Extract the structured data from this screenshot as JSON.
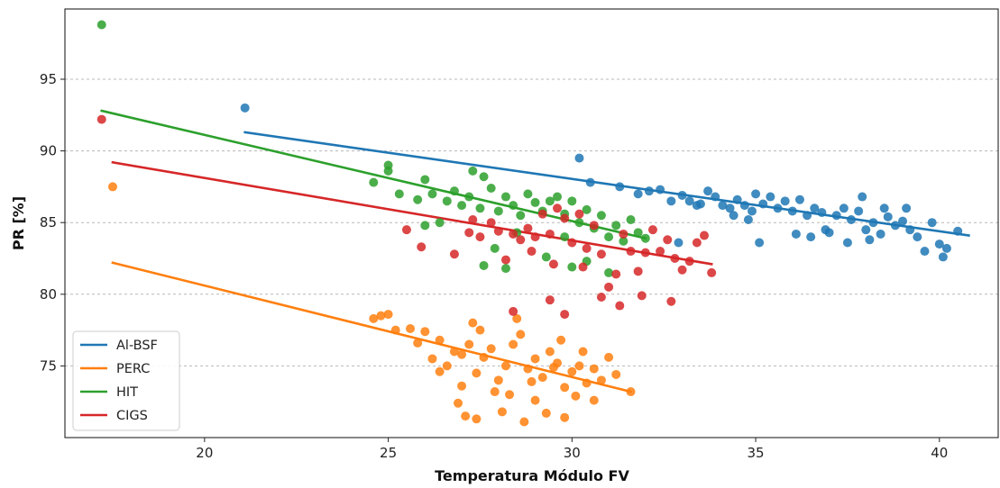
{
  "chart_data": {
    "type": "scatter",
    "title": "",
    "xlabel": "Temperatura Módulo FV",
    "ylabel": "PR [%]",
    "xlim": [
      16.2,
      41.6
    ],
    "ylim": [
      70.0,
      99.9
    ],
    "xticks": [
      20,
      25,
      30,
      35,
      40
    ],
    "yticks": [
      75,
      80,
      85,
      90,
      95
    ],
    "grid": "horizontal dashed",
    "legend_position": "bottom-left",
    "series": [
      {
        "name": "Al-BSF",
        "color": "#1f77b4",
        "fit": [
          [
            21.1,
            91.3
          ],
          [
            40.8,
            84.1
          ]
        ],
        "points": [
          [
            21.1,
            93.0
          ],
          [
            30.2,
            89.5
          ],
          [
            30.5,
            87.8
          ],
          [
            31.3,
            87.5
          ],
          [
            31.8,
            87.0
          ],
          [
            32.1,
            87.2
          ],
          [
            32.4,
            87.3
          ],
          [
            32.7,
            86.5
          ],
          [
            33.0,
            86.9
          ],
          [
            33.2,
            86.5
          ],
          [
            33.5,
            86.3
          ],
          [
            33.7,
            87.2
          ],
          [
            33.9,
            86.8
          ],
          [
            34.1,
            86.2
          ],
          [
            34.3,
            86.0
          ],
          [
            34.5,
            86.6
          ],
          [
            34.7,
            86.2
          ],
          [
            34.9,
            85.8
          ],
          [
            35.0,
            87.0
          ],
          [
            35.2,
            86.3
          ],
          [
            35.4,
            86.8
          ],
          [
            35.6,
            86.0
          ],
          [
            35.8,
            86.5
          ],
          [
            36.0,
            85.8
          ],
          [
            36.2,
            86.6
          ],
          [
            36.4,
            85.5
          ],
          [
            36.6,
            86.0
          ],
          [
            36.8,
            85.7
          ],
          [
            37.0,
            84.3
          ],
          [
            37.2,
            85.5
          ],
          [
            37.4,
            86.0
          ],
          [
            37.6,
            85.2
          ],
          [
            37.8,
            85.8
          ],
          [
            38.0,
            84.5
          ],
          [
            38.2,
            85.0
          ],
          [
            38.4,
            84.2
          ],
          [
            38.6,
            85.4
          ],
          [
            38.8,
            84.8
          ],
          [
            39.0,
            85.1
          ],
          [
            39.2,
            84.5
          ],
          [
            39.4,
            84.0
          ],
          [
            39.6,
            83.0
          ],
          [
            39.8,
            85.0
          ],
          [
            40.0,
            83.5
          ],
          [
            40.2,
            83.2
          ],
          [
            40.5,
            84.4
          ],
          [
            36.5,
            84.0
          ],
          [
            37.5,
            83.6
          ],
          [
            38.1,
            83.8
          ],
          [
            35.1,
            83.6
          ],
          [
            32.9,
            83.6
          ],
          [
            36.1,
            84.2
          ],
          [
            34.8,
            85.2
          ],
          [
            37.9,
            86.8
          ],
          [
            38.5,
            86.0
          ],
          [
            39.1,
            86.0
          ],
          [
            40.1,
            82.6
          ],
          [
            36.9,
            84.5
          ],
          [
            33.4,
            86.2
          ],
          [
            34.4,
            85.5
          ]
        ]
      },
      {
        "name": "PERC",
        "color": "#ff7f0e",
        "fit": [
          [
            17.5,
            82.2
          ],
          [
            31.6,
            73.2
          ]
        ],
        "points": [
          [
            17.5,
            87.5
          ],
          [
            24.6,
            78.3
          ],
          [
            24.8,
            78.5
          ],
          [
            25.0,
            78.6
          ],
          [
            25.2,
            77.5
          ],
          [
            25.6,
            77.6
          ],
          [
            25.8,
            76.6
          ],
          [
            26.0,
            77.4
          ],
          [
            26.2,
            75.5
          ],
          [
            26.4,
            76.8
          ],
          [
            26.6,
            75.0
          ],
          [
            26.8,
            76.0
          ],
          [
            27.0,
            75.8
          ],
          [
            27.2,
            76.5
          ],
          [
            27.4,
            74.5
          ],
          [
            27.6,
            75.6
          ],
          [
            27.8,
            76.2
          ],
          [
            28.0,
            74.0
          ],
          [
            28.2,
            75.0
          ],
          [
            28.4,
            76.5
          ],
          [
            28.6,
            77.2
          ],
          [
            28.8,
            74.8
          ],
          [
            29.0,
            75.5
          ],
          [
            29.2,
            74.2
          ],
          [
            29.4,
            76.0
          ],
          [
            29.6,
            75.2
          ],
          [
            29.8,
            73.5
          ],
          [
            30.0,
            74.6
          ],
          [
            30.2,
            75.0
          ],
          [
            30.4,
            73.8
          ],
          [
            30.6,
            74.8
          ],
          [
            30.8,
            74.0
          ],
          [
            31.0,
            75.6
          ],
          [
            31.2,
            74.4
          ],
          [
            31.6,
            73.2
          ],
          [
            27.3,
            78.0
          ],
          [
            27.5,
            77.5
          ],
          [
            28.5,
            78.3
          ],
          [
            29.7,
            76.8
          ],
          [
            26.9,
            72.4
          ],
          [
            27.1,
            71.5
          ],
          [
            27.4,
            71.3
          ],
          [
            28.1,
            71.8
          ],
          [
            28.7,
            71.1
          ],
          [
            29.3,
            71.7
          ],
          [
            29.8,
            71.4
          ],
          [
            28.3,
            73.0
          ],
          [
            29.0,
            72.6
          ],
          [
            30.1,
            72.9
          ],
          [
            30.6,
            72.6
          ],
          [
            26.4,
            74.6
          ],
          [
            27.0,
            73.6
          ],
          [
            27.9,
            73.2
          ],
          [
            28.9,
            73.9
          ],
          [
            29.5,
            74.9
          ],
          [
            30.3,
            76.0
          ]
        ]
      },
      {
        "name": "HIT",
        "color": "#2ca02c",
        "fit": [
          [
            17.2,
            92.8
          ],
          [
            32.0,
            83.9
          ]
        ],
        "points": [
          [
            17.2,
            98.8
          ],
          [
            24.6,
            87.8
          ],
          [
            25.0,
            89.0
          ],
          [
            25.0,
            88.6
          ],
          [
            25.3,
            87.0
          ],
          [
            25.8,
            86.6
          ],
          [
            26.0,
            88.0
          ],
          [
            26.2,
            87.0
          ],
          [
            26.4,
            85.0
          ],
          [
            26.6,
            86.5
          ],
          [
            26.8,
            87.2
          ],
          [
            27.0,
            86.2
          ],
          [
            27.2,
            86.8
          ],
          [
            27.3,
            88.6
          ],
          [
            27.5,
            86.0
          ],
          [
            27.6,
            88.2
          ],
          [
            27.8,
            87.4
          ],
          [
            28.0,
            85.8
          ],
          [
            28.2,
            86.8
          ],
          [
            28.4,
            86.2
          ],
          [
            28.6,
            85.5
          ],
          [
            28.8,
            87.0
          ],
          [
            29.0,
            86.4
          ],
          [
            29.2,
            85.8
          ],
          [
            29.4,
            86.5
          ],
          [
            29.6,
            86.8
          ],
          [
            29.8,
            85.6
          ],
          [
            30.0,
            86.5
          ],
          [
            30.2,
            85.0
          ],
          [
            30.4,
            85.9
          ],
          [
            30.6,
            84.6
          ],
          [
            30.8,
            85.5
          ],
          [
            31.0,
            84.0
          ],
          [
            31.2,
            84.8
          ],
          [
            31.4,
            83.7
          ],
          [
            31.6,
            85.2
          ],
          [
            31.8,
            84.3
          ],
          [
            32.0,
            83.9
          ],
          [
            27.6,
            82.0
          ],
          [
            28.2,
            81.8
          ],
          [
            29.3,
            82.6
          ],
          [
            30.0,
            81.9
          ],
          [
            31.0,
            81.5
          ],
          [
            28.5,
            84.3
          ],
          [
            29.8,
            84.0
          ],
          [
            26.0,
            84.8
          ],
          [
            27.9,
            83.2
          ],
          [
            30.4,
            82.3
          ]
        ]
      },
      {
        "name": "CIGS",
        "color": "#d62728",
        "fit": [
          [
            17.5,
            89.2
          ],
          [
            33.8,
            82.1
          ]
        ],
        "points": [
          [
            17.2,
            92.2
          ],
          [
            25.5,
            84.5
          ],
          [
            25.9,
            83.3
          ],
          [
            26.8,
            82.8
          ],
          [
            27.2,
            84.3
          ],
          [
            27.5,
            84.0
          ],
          [
            27.8,
            85.0
          ],
          [
            28.0,
            84.4
          ],
          [
            28.2,
            82.4
          ],
          [
            28.4,
            84.2
          ],
          [
            28.6,
            83.8
          ],
          [
            28.8,
            84.6
          ],
          [
            29.0,
            84.0
          ],
          [
            29.2,
            85.6
          ],
          [
            29.4,
            84.2
          ],
          [
            29.6,
            86.0
          ],
          [
            29.8,
            85.3
          ],
          [
            30.0,
            83.6
          ],
          [
            30.2,
            85.6
          ],
          [
            30.4,
            83.2
          ],
          [
            30.6,
            84.8
          ],
          [
            30.8,
            82.8
          ],
          [
            31.0,
            80.5
          ],
          [
            31.2,
            81.4
          ],
          [
            31.4,
            84.2
          ],
          [
            31.6,
            83.0
          ],
          [
            31.8,
            81.6
          ],
          [
            32.0,
            82.9
          ],
          [
            32.2,
            84.5
          ],
          [
            32.4,
            83.0
          ],
          [
            32.6,
            83.8
          ],
          [
            32.8,
            82.5
          ],
          [
            33.0,
            81.7
          ],
          [
            33.2,
            82.3
          ],
          [
            33.4,
            83.6
          ],
          [
            33.6,
            84.1
          ],
          [
            33.8,
            81.5
          ],
          [
            28.4,
            78.8
          ],
          [
            29.4,
            79.6
          ],
          [
            29.8,
            78.6
          ],
          [
            30.8,
            79.8
          ],
          [
            31.3,
            79.2
          ],
          [
            31.9,
            79.9
          ],
          [
            32.7,
            79.5
          ],
          [
            29.5,
            82.1
          ],
          [
            30.3,
            81.9
          ],
          [
            27.3,
            85.2
          ],
          [
            28.9,
            83.0
          ]
        ]
      }
    ]
  }
}
